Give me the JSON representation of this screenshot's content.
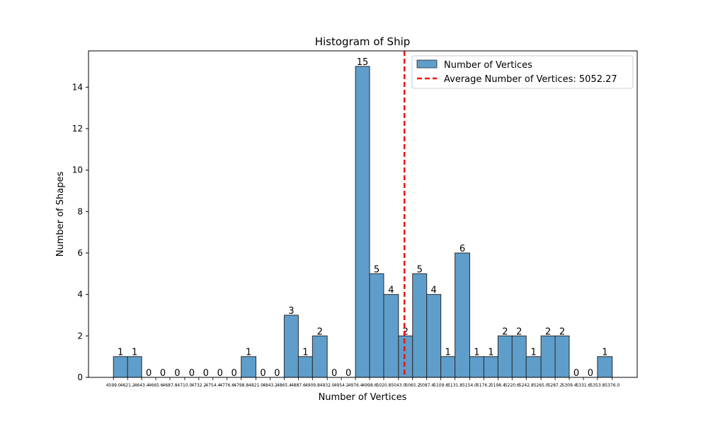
{
  "chart_data": {
    "type": "bar",
    "title": "Histogram of Ship",
    "xlabel": "Number of Vertices",
    "ylabel": "Number of Shapes",
    "xlim": [
      4590.0,
      4620.0,
      4650.0
    ],
    "ylim": [
      0,
      15.75
    ],
    "yticks": [
      0,
      2,
      4,
      6,
      8,
      10,
      12,
      14
    ],
    "bin_edges": [
      4599.0,
      4621.0,
      4643.0,
      4665.0,
      4687.0,
      4710.0,
      4732.0,
      4754.0,
      4776.0,
      4798.0,
      4821.0,
      4843.0,
      4865.0,
      4887.0,
      4909.0,
      4932.0,
      4954.0,
      4976.0,
      4998.0,
      5020.0,
      5043.0,
      5065.0,
      5087.0,
      5109.0,
      5131.0,
      5154.0,
      5176.0,
      5198.0,
      5220.0,
      5242.0,
      5265.0,
      5287.0,
      5309.0,
      5331.0,
      5353.0,
      5376.0
    ],
    "xtick_labels": [
      "4599.0",
      "4621.2",
      "4643.4",
      "4665.6",
      "4687.8",
      "4710.0",
      "4732.2",
      "4754.4",
      "4776.6",
      "4798.8",
      "4821.0",
      "4843.2",
      "4865.4",
      "4887.6",
      "4909.8",
      "4932.0",
      "4954.2",
      "4976.4",
      "4998.6",
      "5020.8",
      "5043.0",
      "5065.2",
      "5087.4",
      "5109.6",
      "5131.8",
      "5154.0",
      "5176.2",
      "5198.4",
      "5220.6",
      "5242.8",
      "5265.0",
      "5287.2",
      "5309.4",
      "5331.6",
      "5353.8",
      "5376.0"
    ],
    "counts": [
      1,
      1,
      0,
      0,
      0,
      0,
      0,
      0,
      0,
      1,
      0,
      0,
      3,
      1,
      2,
      0,
      0,
      15,
      5,
      4,
      2,
      5,
      4,
      1,
      6,
      1,
      1,
      2,
      2,
      1,
      2,
      2,
      0,
      0,
      1
    ],
    "average": 5052.27,
    "legend": {
      "position": "top-right",
      "entries": [
        "Number of Vertices",
        "Average Number of Vertices: 5052.27"
      ]
    },
    "colors": {
      "bar": "#5f9ecb",
      "bar_edge": "#2b2b2b",
      "average_line": "#ee1111"
    }
  }
}
